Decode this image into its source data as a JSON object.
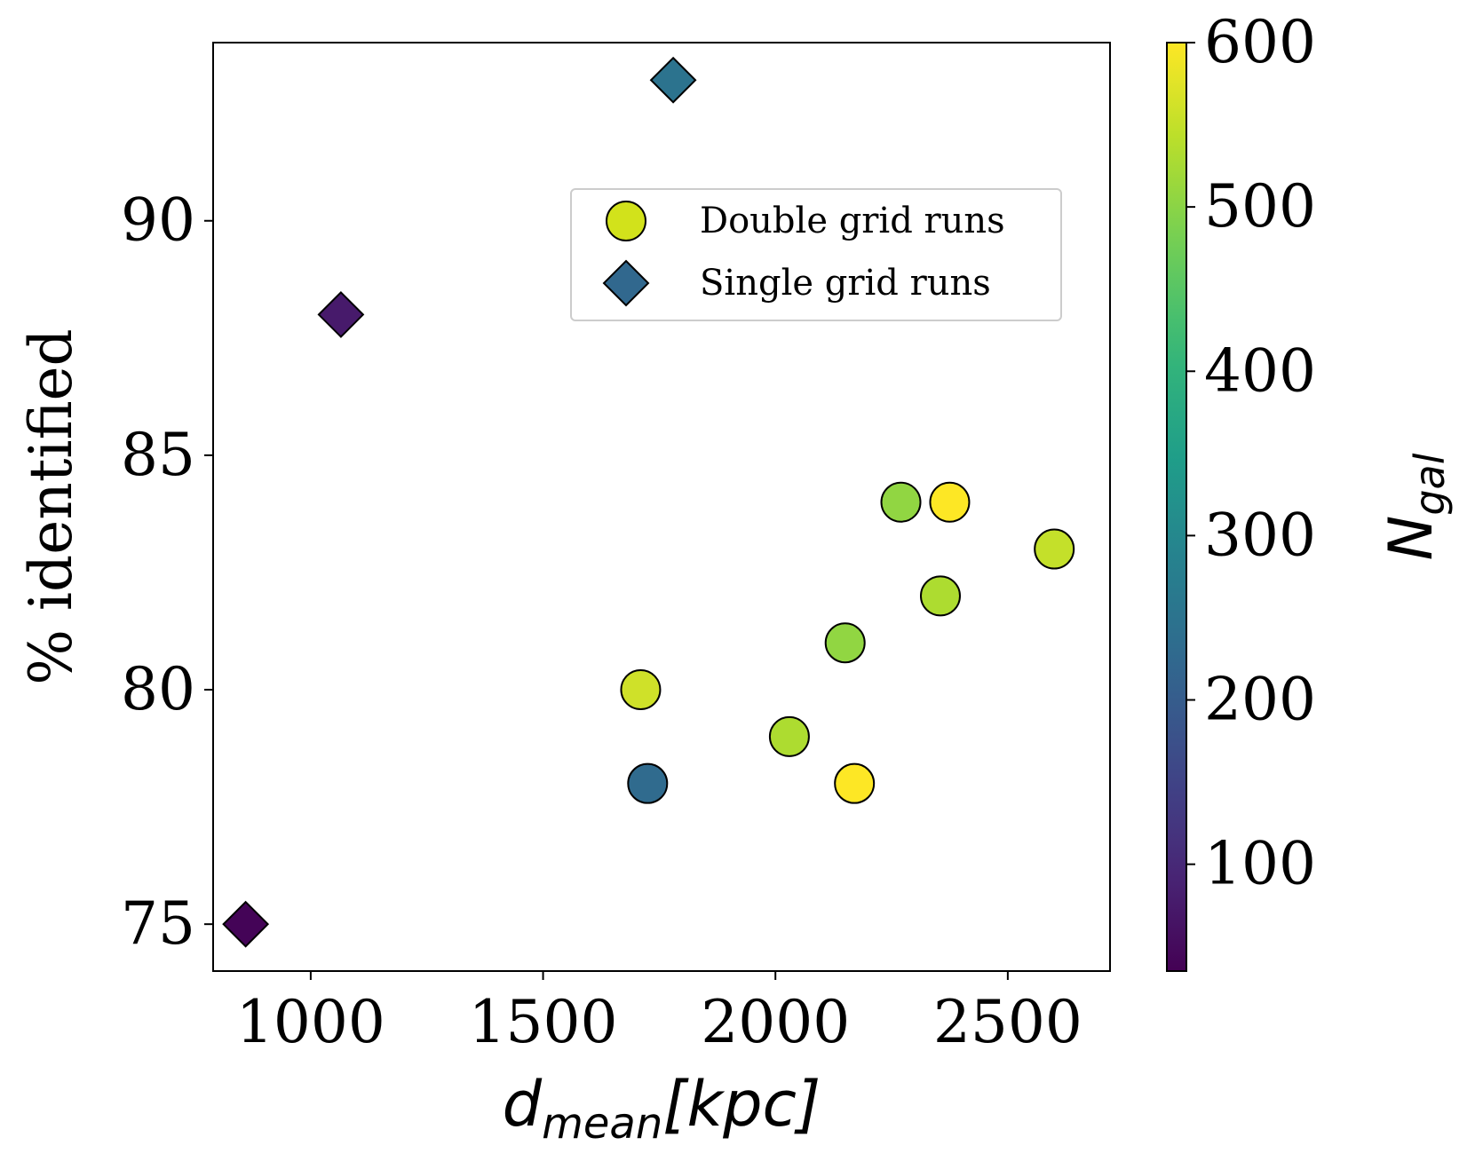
{
  "chart_data": {
    "type": "scatter",
    "xlabel": {
      "base": "d",
      "sub": "mean",
      "rest": "[kpc]"
    },
    "ylabel": "% identified",
    "xlim": [
      790,
      2720
    ],
    "ylim": [
      74,
      93.8
    ],
    "xticks": [
      1000,
      1500,
      2000,
      2500
    ],
    "yticks": [
      75,
      80,
      85,
      90
    ],
    "grid": false,
    "legend": {
      "placement": "upper right",
      "entries": [
        {
          "label": "Double grid runs",
          "marker": "circle",
          "color": "#d2e21b"
        },
        {
          "label": "Single grid runs",
          "marker": "diamond",
          "color": "#31688e"
        }
      ]
    },
    "colorbar": {
      "label": {
        "base": "N",
        "sub": "gal"
      },
      "range": [
        35,
        600
      ],
      "ticks": [
        100,
        200,
        300,
        400,
        500,
        600
      ],
      "colormap": "viridis"
    },
    "series": [
      {
        "name": "Double grid runs",
        "marker": "circle",
        "points": [
          {
            "x": 1710,
            "y": 80,
            "c": 560
          },
          {
            "x": 1725,
            "y": 78,
            "c": 230
          },
          {
            "x": 2030,
            "y": 79,
            "c": 530
          },
          {
            "x": 2150,
            "y": 81,
            "c": 505
          },
          {
            "x": 2170,
            "y": 78,
            "c": 600
          },
          {
            "x": 2270,
            "y": 84,
            "c": 505
          },
          {
            "x": 2355,
            "y": 82,
            "c": 530
          },
          {
            "x": 2375,
            "y": 84,
            "c": 600
          },
          {
            "x": 2600,
            "y": 83,
            "c": 550
          }
        ]
      },
      {
        "name": "Single grid runs",
        "marker": "diamond",
        "points": [
          {
            "x": 860,
            "y": 75,
            "c": 40
          },
          {
            "x": 1065,
            "y": 88,
            "c": 75
          },
          {
            "x": 1780,
            "y": 93,
            "c": 250
          }
        ]
      }
    ]
  }
}
